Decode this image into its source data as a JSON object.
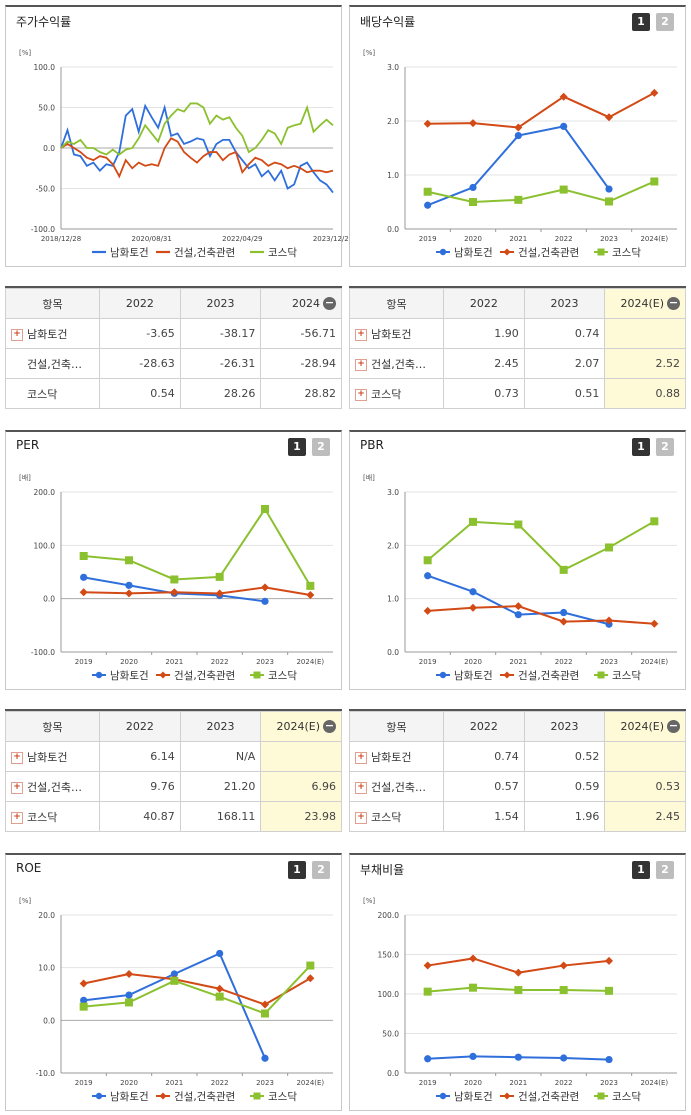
{
  "colors": {
    "namhwa": "#2f6fdb",
    "construction": "#d24a16",
    "kosdaq": "#8bc02f"
  },
  "panels": {
    "stock_return": {
      "title": "주가수익률"
    },
    "dividend": {
      "title": "배당수익률",
      "btn1": "1",
      "btn2": "2"
    },
    "per": {
      "title": "PER",
      "btn1": "1",
      "btn2": "2"
    },
    "pbr": {
      "title": "PBR",
      "btn1": "1",
      "btn2": "2"
    },
    "roe": {
      "title": "ROE",
      "btn1": "1",
      "btn2": "2"
    },
    "debt": {
      "title": "부채비율",
      "btn1": "1",
      "btn2": "2"
    }
  },
  "tables": {
    "stock_return": {
      "header": {
        "item": "항목",
        "c1": "2022",
        "c2": "2023",
        "c3": "2024"
      },
      "rows": [
        {
          "name": "남화토건",
          "v1": "-3.65",
          "v2": "-38.17",
          "v3": "-56.71"
        },
        {
          "name": "건설,건축…",
          "v1": "-28.63",
          "v2": "-26.31",
          "v3": "-28.94"
        },
        {
          "name": "코스닥",
          "v1": "0.54",
          "v2": "28.26",
          "v3": "28.82"
        }
      ]
    },
    "dividend": {
      "header": {
        "item": "항목",
        "c1": "2022",
        "c2": "2023",
        "c3": "2024(E)"
      },
      "rows": [
        {
          "name": "남화토건",
          "v1": "1.90",
          "v2": "0.74",
          "v3": ""
        },
        {
          "name": "건설,건축…",
          "v1": "2.45",
          "v2": "2.07",
          "v3": "2.52"
        },
        {
          "name": "코스닥",
          "v1": "0.73",
          "v2": "0.51",
          "v3": "0.88"
        }
      ]
    },
    "per": {
      "header": {
        "item": "항목",
        "c1": "2022",
        "c2": "2023",
        "c3": "2024(E)"
      },
      "rows": [
        {
          "name": "남화토건",
          "v1": "6.14",
          "v2": "N/A",
          "v3": ""
        },
        {
          "name": "건설,건축…",
          "v1": "9.76",
          "v2": "21.20",
          "v3": "6.96"
        },
        {
          "name": "코스닥",
          "v1": "40.87",
          "v2": "168.11",
          "v3": "23.98"
        }
      ]
    },
    "pbr": {
      "header": {
        "item": "항목",
        "c1": "2022",
        "c2": "2023",
        "c3": "2024(E)"
      },
      "rows": [
        {
          "name": "남화토건",
          "v1": "0.74",
          "v2": "0.52",
          "v3": ""
        },
        {
          "name": "건설,건축…",
          "v1": "0.57",
          "v2": "0.59",
          "v3": "0.53"
        },
        {
          "name": "코스닥",
          "v1": "1.54",
          "v2": "1.96",
          "v3": "2.45"
        }
      ]
    }
  },
  "chart_data": [
    {
      "id": "stock_return",
      "type": "line",
      "unit": "[%]",
      "x_ticks": [
        "2018/12/28",
        "2020/08/31",
        "2022/04/29",
        "2023/12/28"
      ],
      "y_ticks": [
        "100.0",
        "50.0",
        "0.0",
        "-50.0",
        "-100.0"
      ],
      "ylim": [
        -100,
        100
      ],
      "series": [
        {
          "name": "남화토건",
          "values": [
            0,
            22,
            -8,
            -10,
            -22,
            -18,
            -28,
            -20,
            -22,
            -5,
            40,
            48,
            20,
            52,
            38,
            25,
            50,
            15,
            18,
            5,
            8,
            12,
            10,
            -10,
            5,
            10,
            10,
            -5,
            -15,
            -25,
            -20,
            -35,
            -28,
            -40,
            -28,
            -50,
            -45,
            -22,
            -18,
            -30,
            -40,
            -45,
            -55
          ]
        },
        {
          "name": "건설,건축관련",
          "values": [
            0,
            5,
            0,
            -5,
            -12,
            -15,
            -10,
            -12,
            -20,
            -35,
            -15,
            -25,
            -18,
            -22,
            -20,
            -22,
            0,
            12,
            8,
            -5,
            -12,
            -18,
            -10,
            -5,
            -5,
            -15,
            -8,
            -5,
            -30,
            -20,
            -12,
            -15,
            -22,
            -18,
            -20,
            -25,
            -22,
            -25,
            -30,
            -28,
            -28,
            -30,
            -28
          ]
        },
        {
          "name": "코스닥",
          "values": [
            0,
            8,
            5,
            10,
            0,
            0,
            -5,
            -8,
            -2,
            -8,
            -2,
            0,
            12,
            28,
            18,
            8,
            30,
            40,
            48,
            45,
            55,
            55,
            50,
            30,
            40,
            35,
            38,
            25,
            15,
            -5,
            0,
            10,
            22,
            18,
            5,
            25,
            28,
            30,
            50,
            20,
            28,
            35,
            28
          ]
        }
      ]
    },
    {
      "id": "dividend",
      "type": "line",
      "unit": "[%]",
      "categories": [
        "2019",
        "2020",
        "2021",
        "2022",
        "2023",
        "2024(E)"
      ],
      "y_ticks": [
        "3.0",
        "2.0",
        "1.0",
        "0.0"
      ],
      "ylim": [
        0,
        3
      ],
      "series": [
        {
          "name": "남화토건",
          "values": [
            0.44,
            0.77,
            1.73,
            1.9,
            0.74,
            null
          ]
        },
        {
          "name": "건설,건축관련",
          "values": [
            1.95,
            1.96,
            1.88,
            2.45,
            2.07,
            2.52
          ]
        },
        {
          "name": "코스닥",
          "values": [
            0.69,
            0.5,
            0.54,
            0.73,
            0.51,
            0.88
          ]
        }
      ]
    },
    {
      "id": "per",
      "type": "line",
      "unit": "[배]",
      "categories": [
        "2019",
        "2020",
        "2021",
        "2022",
        "2023",
        "2024(E)"
      ],
      "y_ticks": [
        "200.0",
        "100.0",
        "0.0",
        "-100.0"
      ],
      "ylim": [
        -100,
        200
      ],
      "series": [
        {
          "name": "남화토건",
          "values": [
            40,
            25,
            10,
            6.14,
            -5,
            null
          ]
        },
        {
          "name": "건설,건축관련",
          "values": [
            12,
            10,
            12,
            9.76,
            21.2,
            6.96
          ]
        },
        {
          "name": "코스닥",
          "values": [
            80,
            72,
            36,
            40.87,
            168.11,
            23.98
          ]
        }
      ]
    },
    {
      "id": "pbr",
      "type": "line",
      "unit": "[배]",
      "categories": [
        "2019",
        "2020",
        "2021",
        "2022",
        "2023",
        "2024(E)"
      ],
      "y_ticks": [
        "3.0",
        "2.0",
        "1.0",
        "0.0"
      ],
      "ylim": [
        0,
        3
      ],
      "series": [
        {
          "name": "남화토건",
          "values": [
            1.43,
            1.13,
            0.7,
            0.74,
            0.52,
            null
          ]
        },
        {
          "name": "건설,건축관련",
          "values": [
            0.77,
            0.83,
            0.86,
            0.57,
            0.59,
            0.53
          ]
        },
        {
          "name": "코스닥",
          "values": [
            1.72,
            2.44,
            2.39,
            1.54,
            1.96,
            2.45
          ]
        }
      ]
    },
    {
      "id": "roe",
      "type": "line",
      "unit": "[%]",
      "categories": [
        "2019",
        "2020",
        "2021",
        "2022",
        "2023",
        "2024(E)"
      ],
      "y_ticks": [
        "20.0",
        "10.0",
        "0.0",
        "-10.0"
      ],
      "ylim": [
        -10,
        20
      ],
      "series": [
        {
          "name": "남화토건",
          "values": [
            3.8,
            4.8,
            8.8,
            12.7,
            -7.2,
            null
          ]
        },
        {
          "name": "건설,건축관련",
          "values": [
            7.0,
            8.8,
            7.8,
            6.0,
            3.0,
            8.0
          ]
        },
        {
          "name": "코스닥",
          "values": [
            2.6,
            3.4,
            7.5,
            4.5,
            1.3,
            10.4
          ]
        }
      ]
    },
    {
      "id": "debt",
      "type": "line",
      "unit": "[%]",
      "categories": [
        "2019",
        "2020",
        "2021",
        "2022",
        "2023",
        "2024(E)"
      ],
      "y_ticks": [
        "200.0",
        "150.0",
        "100.0",
        "50.0",
        "0.0"
      ],
      "ylim": [
        0,
        200
      ],
      "series": [
        {
          "name": "남화토건",
          "values": [
            18,
            21,
            20,
            19,
            17,
            null
          ]
        },
        {
          "name": "건설,건축관련",
          "values": [
            136,
            145,
            127,
            136,
            142,
            null
          ]
        },
        {
          "name": "코스닥",
          "values": [
            103,
            108,
            105,
            105,
            104,
            null
          ]
        }
      ]
    }
  ]
}
